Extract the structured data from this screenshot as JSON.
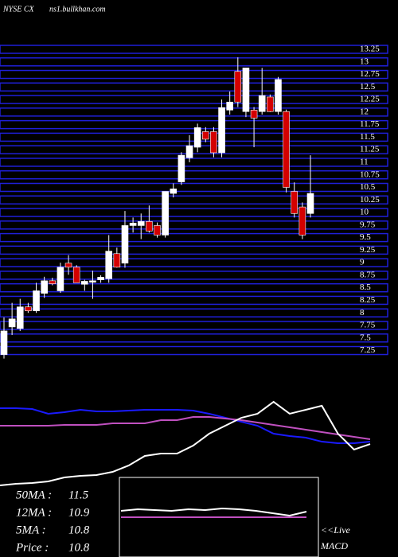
{
  "chart_data": [
    {
      "type": "candlestick",
      "title": "NYSE CX",
      "subtitle": "ns1.bullkhan.com",
      "open": [
        7.17,
        7.72,
        7.69,
        8.12,
        8.04,
        8.39,
        8.64,
        8.44,
        8.99,
        8.91,
        8.57,
        8.61,
        8.66,
        8.68,
        9.18,
        8.99,
        9.74,
        9.74,
        9.82,
        9.74,
        9.55,
        10.38,
        10.61,
        11.09,
        11.3,
        11.61,
        11.61,
        11.19,
        12.04,
        12.81,
        12.01,
        12.04,
        12.01,
        12.3,
        12.01,
        12.01,
        10.42,
        10.11,
        9.98
      ],
      "high": [
        7.91,
        8.2,
        8.28,
        8.2,
        8.6,
        8.72,
        8.7,
        9.0,
        9.15,
        8.95,
        8.66,
        8.84,
        8.75,
        9.55,
        9.3,
        10.03,
        9.9,
        9.98,
        10.14,
        9.8,
        10.42,
        10.58,
        11.2,
        11.54,
        11.77,
        11.7,
        11.7,
        12.25,
        12.41,
        13.09,
        12.88,
        12.1,
        12.88,
        12.35,
        12.7,
        12.05,
        10.6,
        10.2,
        11.14
      ],
      "low": [
        7.09,
        7.56,
        7.64,
        8.0,
        8.0,
        8.3,
        8.55,
        8.4,
        8.76,
        8.6,
        8.44,
        8.28,
        8.6,
        8.6,
        8.9,
        8.9,
        9.6,
        9.47,
        9.6,
        9.5,
        9.5,
        10.3,
        10.55,
        11.0,
        11.2,
        11.4,
        11.1,
        11.1,
        11.95,
        12.1,
        11.9,
        11.3,
        11.95,
        12.0,
        11.95,
        10.4,
        9.9,
        9.47,
        9.9
      ],
      "close": [
        7.64,
        7.88,
        8.12,
        8.04,
        8.44,
        8.64,
        8.58,
        8.91,
        8.91,
        8.6,
        8.63,
        8.64,
        8.71,
        9.23,
        8.91,
        9.74,
        9.79,
        9.82,
        9.63,
        9.55,
        10.42,
        10.47,
        11.14,
        11.33,
        11.69,
        11.46,
        11.19,
        12.09,
        12.2,
        12.2,
        12.88,
        11.88,
        12.33,
        12.01,
        12.65,
        10.5,
        9.98,
        9.55,
        10.38
      ],
      "up_color": "#ffffff",
      "down_color": "#d40000",
      "grid_color": "#1f1fd8",
      "ylim": [
        7.1,
        13.25
      ],
      "yticks": [
        7.25,
        7.5,
        7.75,
        8,
        8.25,
        8.5,
        8.75,
        9,
        9.25,
        9.5,
        9.75,
        10,
        10.25,
        10.5,
        10.75,
        11,
        11.25,
        11.5,
        11.75,
        12,
        12.25,
        12.5,
        12.75,
        13,
        13.25
      ]
    },
    {
      "type": "line",
      "ylim": [
        0,
        100
      ],
      "series": [
        {
          "color": "#1a1aff",
          "values": [
            92.7,
            92.7,
            91.8,
            86.4,
            88.2,
            90.9,
            89.1,
            89.1,
            90,
            90.9,
            90.9,
            90.9,
            90,
            86.4,
            81.8,
            77.3,
            72.7,
            63.6,
            60.9,
            59.1,
            54.5,
            52.7,
            52.7,
            54.5
          ]
        },
        {
          "color": "#c050c0",
          "values": [
            72.7,
            72.7,
            72.7,
            72.7,
            73.6,
            73.6,
            73.6,
            75.5,
            75.5,
            75.5,
            79.1,
            79.1,
            82.7,
            82.7,
            80.9,
            79.1,
            76.4,
            73.6,
            70.9,
            68.2,
            65.5,
            62.7,
            60,
            57.3
          ]
        },
        {
          "color": "#ffffff",
          "values": [
            4.5,
            6.4,
            7.3,
            9.1,
            13.6,
            15.5,
            16.4,
            20,
            27.3,
            38.2,
            40.9,
            40.9,
            50,
            63.6,
            72.7,
            81.8,
            86.4,
            100,
            86.4,
            90.9,
            95.5,
            63.6,
            45.5,
            51.8
          ]
        }
      ],
      "stats": [
        {
          "label": "50MA :",
          "value": 11.5
        },
        {
          "label": "12MA :",
          "value": 10.9
        },
        {
          "label": "5MA :",
          "value": 10.8
        },
        {
          "label": "Price   :",
          "value": 10.8
        }
      ]
    },
    {
      "type": "line",
      "title": "<<Live",
      "subtitle": "MACD",
      "ylim": [
        0,
        100
      ],
      "series": [
        {
          "color": "#ffffff",
          "values": [
            58,
            60,
            59,
            58,
            60,
            59,
            61,
            60,
            58,
            55,
            52,
            57
          ]
        },
        {
          "color": "#c050c0",
          "values": [
            50,
            50,
            50,
            50,
            50,
            50,
            50,
            50,
            50,
            50,
            50,
            50
          ]
        }
      ]
    }
  ]
}
